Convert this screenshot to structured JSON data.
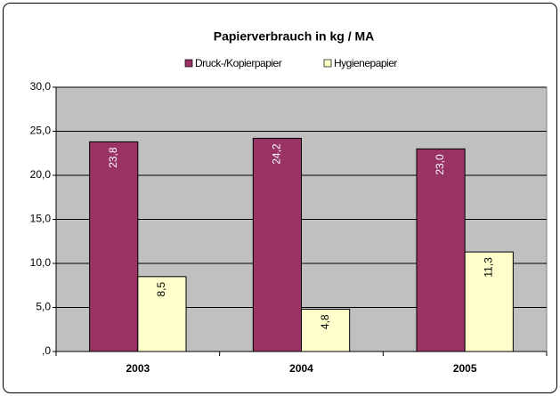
{
  "chart_data": {
    "type": "bar",
    "title": "Papierverbrauch in kg / MA",
    "categories": [
      "2003",
      "2004",
      "2005"
    ],
    "series": [
      {
        "name": "Druck-/Kopierpapier",
        "color": "#993366",
        "label_color": "#ffffff",
        "values": [
          23.8,
          24.2,
          23.0
        ],
        "value_labels": [
          "23,8",
          "24,2",
          "23,0"
        ]
      },
      {
        "name": "Hygienepapier",
        "color": "#ffffcc",
        "label_color": "#000000",
        "values": [
          8.5,
          4.8,
          11.3
        ],
        "value_labels": [
          "8,5",
          "4,8",
          "11,3"
        ]
      }
    ],
    "ylim": [
      0,
      30
    ],
    "yticks": [
      {
        "value": 0,
        "label": ",0"
      },
      {
        "value": 5,
        "label": "5,0"
      },
      {
        "value": 10,
        "label": "10,0"
      },
      {
        "value": 15,
        "label": "15,0"
      },
      {
        "value": 20,
        "label": "20,0"
      },
      {
        "value": 25,
        "label": "25,0"
      },
      {
        "value": 30,
        "label": "30,0"
      }
    ],
    "grid": true,
    "plot_background": "#c0c0c0",
    "legend": "top"
  }
}
